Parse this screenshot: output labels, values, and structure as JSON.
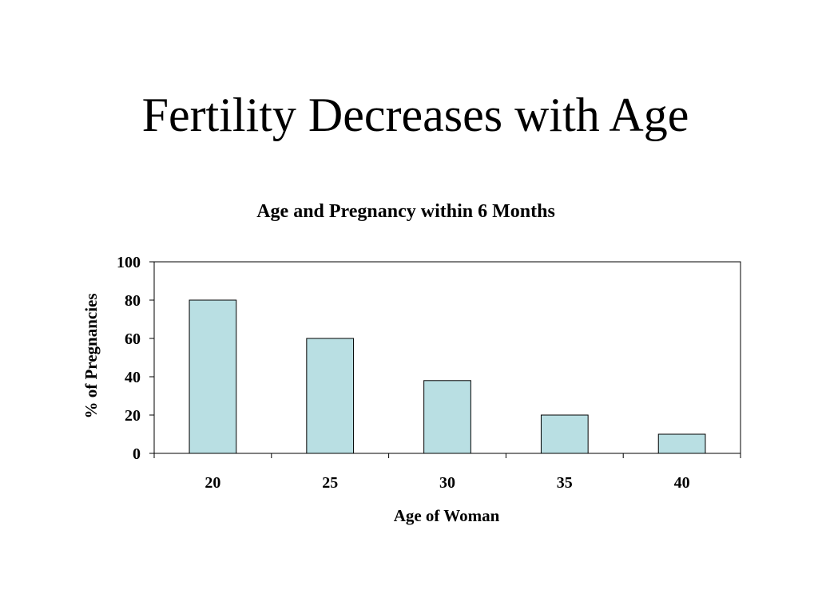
{
  "slide": {
    "title": "Fertility Decreases with Age"
  },
  "chart_data": {
    "type": "bar",
    "title": "Age and Pregnancy within 6 Months",
    "xlabel": "Age of Woman",
    "ylabel": "% of Pregnancies",
    "categories": [
      "20",
      "25",
      "30",
      "35",
      "40"
    ],
    "values": [
      80,
      60,
      38,
      20,
      10
    ],
    "ylim": [
      0,
      100
    ],
    "yticks": [
      0,
      20,
      40,
      60,
      80,
      100
    ],
    "grid": false,
    "legend": "none",
    "colors": {
      "bar_fill": "#b9dfe3",
      "bar_stroke": "#000000",
      "axis": "#000000"
    }
  }
}
